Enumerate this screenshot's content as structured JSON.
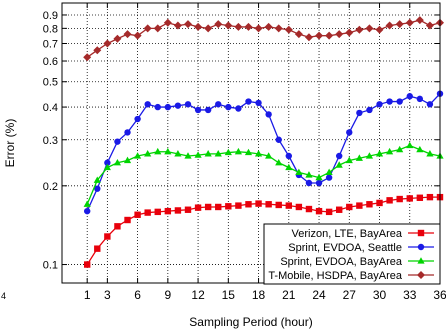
{
  "chart_data": {
    "type": "line",
    "title": "",
    "xlabel": "Sampling Period (hour)",
    "ylabel": "Error (%)",
    "yscale": "log",
    "xlim": [
      -1.5,
      36
    ],
    "ylim": [
      0.085,
      1.0
    ],
    "grid": true,
    "legend_position": "bottom-right",
    "edge_label": "4",
    "x_ticks": [
      1,
      3,
      6,
      9,
      12,
      15,
      18,
      21,
      24,
      27,
      30,
      33,
      36
    ],
    "y_ticks": [
      {
        "value": 0.1,
        "label": "0.1"
      },
      {
        "value": 0.2,
        "label": "0.2"
      },
      {
        "value": 0.3,
        "label": "0.3"
      },
      {
        "value": 0.4,
        "label": "0.4"
      },
      {
        "value": 0.5,
        "label": "0.5"
      },
      {
        "value": 0.6,
        "label": "0.6"
      },
      {
        "value": 0.7,
        "label": "0.7"
      },
      {
        "value": 0.8,
        "label": "0.8"
      },
      {
        "value": 0.9,
        "label": "0.9"
      }
    ],
    "x": [
      1,
      2,
      3,
      4,
      5,
      6,
      7,
      8,
      9,
      10,
      11,
      12,
      13,
      14,
      15,
      16,
      17,
      18,
      19,
      20,
      21,
      22,
      23,
      24,
      25,
      26,
      27,
      28,
      29,
      30,
      31,
      32,
      33,
      34,
      35,
      36
    ],
    "series": [
      {
        "name": "Verizon, LTE, BayArea",
        "color": "#e8000b",
        "marker": "square",
        "values": [
          0.1,
          0.115,
          0.128,
          0.14,
          0.148,
          0.155,
          0.158,
          0.159,
          0.16,
          0.161,
          0.162,
          0.165,
          0.166,
          0.166,
          0.167,
          0.168,
          0.17,
          0.171,
          0.17,
          0.169,
          0.168,
          0.166,
          0.163,
          0.16,
          0.159,
          0.162,
          0.166,
          0.168,
          0.17,
          0.172,
          0.176,
          0.178,
          0.179,
          0.18,
          0.181,
          0.181
        ]
      },
      {
        "name": "Sprint, EVDOA, Seattle",
        "color": "#1a1ae6",
        "marker": "circle",
        "values": [
          0.16,
          0.195,
          0.245,
          0.295,
          0.32,
          0.36,
          0.41,
          0.4,
          0.4,
          0.405,
          0.41,
          0.39,
          0.39,
          0.41,
          0.4,
          0.395,
          0.42,
          0.415,
          0.375,
          0.3,
          0.26,
          0.22,
          0.205,
          0.205,
          0.215,
          0.26,
          0.32,
          0.38,
          0.39,
          0.41,
          0.42,
          0.42,
          0.44,
          0.43,
          0.41,
          0.45
        ]
      },
      {
        "name": "Sprint, EVDOA, BayArea",
        "color": "#00d400",
        "marker": "triangle",
        "values": [
          0.17,
          0.21,
          0.235,
          0.245,
          0.25,
          0.26,
          0.265,
          0.27,
          0.27,
          0.265,
          0.26,
          0.262,
          0.265,
          0.265,
          0.268,
          0.27,
          0.268,
          0.265,
          0.26,
          0.245,
          0.235,
          0.225,
          0.22,
          0.215,
          0.225,
          0.24,
          0.25,
          0.255,
          0.26,
          0.265,
          0.27,
          0.275,
          0.285,
          0.275,
          0.265,
          0.26
        ]
      },
      {
        "name": "T-Mobile, HSDPA, BayArea",
        "color": "#a52a2a",
        "marker": "diamond",
        "values": [
          0.62,
          0.66,
          0.7,
          0.73,
          0.76,
          0.75,
          0.8,
          0.8,
          0.84,
          0.82,
          0.83,
          0.81,
          0.8,
          0.83,
          0.82,
          0.81,
          0.81,
          0.8,
          0.81,
          0.8,
          0.79,
          0.76,
          0.74,
          0.75,
          0.75,
          0.76,
          0.77,
          0.79,
          0.8,
          0.79,
          0.82,
          0.83,
          0.84,
          0.86,
          0.82,
          0.84
        ]
      }
    ]
  }
}
